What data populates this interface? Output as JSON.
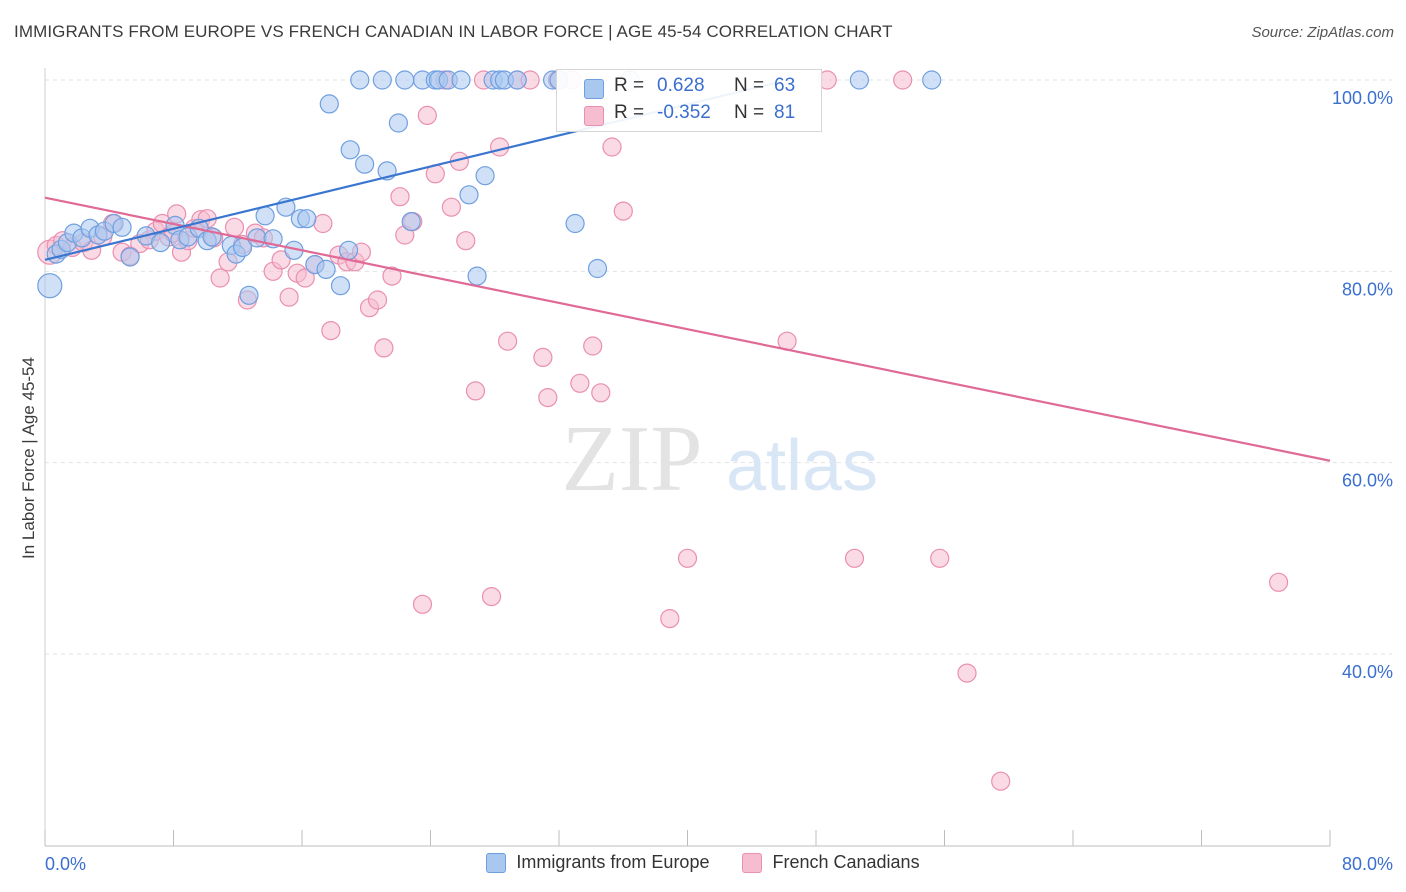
{
  "title": "IMMIGRANTS FROM EUROPE VS FRENCH CANADIAN IN LABOR FORCE | AGE 45-54 CORRELATION CHART",
  "source": "Source: ZipAtlas.com",
  "watermark": {
    "zip": "ZIP",
    "atlas": "atlas"
  },
  "colors": {
    "blue_fill": "#a9c8f0",
    "blue_stroke": "#6f9fe0",
    "blue_line": "#3a76d0",
    "pink_fill": "#f6bcd0",
    "pink_stroke": "#ea8fb0",
    "pink_line": "#e06a96",
    "axis_text": "#3a6fd0",
    "grid": "#e2e2e2"
  },
  "stats": [
    {
      "r_label": "R =",
      "r_value": "0.628",
      "n_label": "N =",
      "n_value": "63"
    },
    {
      "r_label": "R =",
      "r_value": "-0.352",
      "n_label": "N =",
      "n_value": "81"
    }
  ],
  "legend": [
    {
      "label": "Immigrants from Europe",
      "color": "#a9c8f0"
    },
    {
      "label": "French Canadians",
      "color": "#f6bcd0"
    }
  ],
  "chart_data": {
    "type": "scatter",
    "title": "IMMIGRANTS FROM EUROPE VS FRENCH CANADIAN IN LABOR FORCE | AGE 45-54 CORRELATION CHART",
    "xlabel": "",
    "ylabel": "In Labor Force | Age 45-54",
    "xlim": [
      0,
      80
    ],
    "ylim": [
      17,
      104
    ],
    "x_tick_labels": [
      "0.0%",
      "80.0%"
    ],
    "y_tick_labels": [
      "40.0%",
      "60.0%",
      "80.0%",
      "100.0%"
    ],
    "y_ticks": [
      40,
      60,
      80,
      100
    ],
    "grid": true,
    "legend_position": "bottom",
    "series": [
      {
        "name": "Immigrants from Europe",
        "r": 0.628,
        "n": 63,
        "trend": {
          "x": [
            0,
            45.5
          ],
          "y": [
            81.2,
            99.7
          ]
        },
        "points": [
          [
            0.3,
            78.5
          ],
          [
            0.7,
            81.8
          ],
          [
            1.0,
            82.3
          ],
          [
            1.4,
            83.0
          ],
          [
            1.8,
            84.0
          ],
          [
            2.3,
            83.5
          ],
          [
            2.8,
            84.5
          ],
          [
            3.3,
            83.8
          ],
          [
            3.7,
            84.2
          ],
          [
            4.3,
            85.0
          ],
          [
            4.8,
            84.6
          ],
          [
            5.3,
            81.5
          ],
          [
            6.3,
            83.7
          ],
          [
            7.2,
            83.0
          ],
          [
            8.1,
            84.8
          ],
          [
            8.4,
            83.3
          ],
          [
            8.9,
            83.6
          ],
          [
            9.6,
            84.5
          ],
          [
            10.1,
            83.2
          ],
          [
            10.4,
            83.6
          ],
          [
            11.6,
            82.7
          ],
          [
            11.9,
            81.8
          ],
          [
            12.3,
            82.5
          ],
          [
            12.7,
            77.5
          ],
          [
            13.2,
            83.5
          ],
          [
            13.7,
            85.8
          ],
          [
            14.2,
            83.4
          ],
          [
            15.0,
            86.7
          ],
          [
            15.5,
            82.2
          ],
          [
            15.9,
            85.5
          ],
          [
            16.3,
            85.5
          ],
          [
            16.8,
            80.7
          ],
          [
            17.5,
            80.2
          ],
          [
            17.7,
            97.5
          ],
          [
            18.4,
            78.5
          ],
          [
            18.9,
            82.2
          ],
          [
            19.0,
            92.7
          ],
          [
            19.6,
            100.0
          ],
          [
            19.9,
            91.2
          ],
          [
            21.0,
            100.0
          ],
          [
            21.3,
            90.5
          ],
          [
            22.0,
            95.5
          ],
          [
            22.4,
            100.0
          ],
          [
            22.8,
            85.2
          ],
          [
            23.5,
            100.0
          ],
          [
            24.3,
            100.0
          ],
          [
            24.5,
            100.0
          ],
          [
            25.1,
            100.0
          ],
          [
            25.9,
            100.0
          ],
          [
            26.4,
            88.0
          ],
          [
            26.9,
            79.5
          ],
          [
            27.4,
            90.0
          ],
          [
            27.9,
            100.0
          ],
          [
            28.3,
            100.0
          ],
          [
            28.6,
            100.0
          ],
          [
            29.4,
            100.0
          ],
          [
            31.6,
            100.0
          ],
          [
            32.0,
            100.0
          ],
          [
            33.0,
            85.0
          ],
          [
            34.4,
            80.3
          ],
          [
            36.4,
            100.0
          ],
          [
            50.7,
            100.0
          ],
          [
            55.2,
            100.0
          ]
        ]
      },
      {
        "name": "French Canadians",
        "r": -0.352,
        "n": 81,
        "trend": {
          "x": [
            0,
            80
          ],
          "y": [
            87.7,
            60.2
          ]
        },
        "points": [
          [
            0.3,
            82.0
          ],
          [
            0.7,
            82.7
          ],
          [
            1.1,
            83.2
          ],
          [
            1.7,
            82.5
          ],
          [
            2.4,
            83.0
          ],
          [
            2.9,
            82.2
          ],
          [
            3.6,
            83.6
          ],
          [
            4.2,
            85.0
          ],
          [
            4.8,
            82.0
          ],
          [
            5.3,
            81.6
          ],
          [
            5.9,
            82.9
          ],
          [
            6.5,
            83.3
          ],
          [
            6.9,
            84.2
          ],
          [
            7.3,
            85.0
          ],
          [
            7.7,
            83.6
          ],
          [
            8.0,
            84.0
          ],
          [
            8.2,
            86.0
          ],
          [
            8.5,
            82.0
          ],
          [
            8.9,
            83.2
          ],
          [
            9.3,
            84.5
          ],
          [
            9.7,
            85.4
          ],
          [
            10.1,
            85.5
          ],
          [
            10.5,
            83.5
          ],
          [
            10.9,
            79.3
          ],
          [
            11.4,
            81.0
          ],
          [
            11.8,
            84.6
          ],
          [
            12.3,
            82.8
          ],
          [
            12.6,
            77.0
          ],
          [
            13.1,
            84.0
          ],
          [
            13.6,
            83.5
          ],
          [
            14.2,
            80.0
          ],
          [
            14.7,
            81.2
          ],
          [
            15.2,
            77.3
          ],
          [
            15.7,
            79.8
          ],
          [
            16.2,
            79.3
          ],
          [
            16.8,
            80.7
          ],
          [
            17.3,
            85.0
          ],
          [
            17.8,
            73.8
          ],
          [
            18.3,
            81.7
          ],
          [
            18.8,
            81.0
          ],
          [
            19.3,
            81.0
          ],
          [
            19.7,
            82.0
          ],
          [
            20.2,
            76.2
          ],
          [
            20.7,
            77.0
          ],
          [
            21.1,
            72.0
          ],
          [
            21.6,
            79.5
          ],
          [
            22.1,
            87.8
          ],
          [
            22.4,
            83.8
          ],
          [
            22.9,
            85.2
          ],
          [
            23.5,
            45.2
          ],
          [
            23.8,
            96.3
          ],
          [
            24.3,
            90.2
          ],
          [
            24.9,
            100.0
          ],
          [
            25.3,
            86.7
          ],
          [
            25.8,
            91.5
          ],
          [
            26.2,
            83.2
          ],
          [
            26.8,
            67.5
          ],
          [
            27.3,
            100.0
          ],
          [
            27.8,
            46.0
          ],
          [
            28.3,
            93.0
          ],
          [
            28.8,
            72.7
          ],
          [
            29.4,
            100.0
          ],
          [
            30.2,
            100.0
          ],
          [
            31.0,
            71.0
          ],
          [
            31.3,
            66.8
          ],
          [
            31.9,
            100.0
          ],
          [
            32.8,
            100.0
          ],
          [
            33.3,
            68.3
          ],
          [
            34.1,
            72.2
          ],
          [
            34.6,
            67.3
          ],
          [
            35.3,
            93.0
          ],
          [
            36.0,
            86.3
          ],
          [
            38.9,
            43.7
          ],
          [
            40.0,
            50.0
          ],
          [
            46.2,
            72.7
          ],
          [
            48.7,
            100.0
          ],
          [
            50.4,
            50.0
          ],
          [
            53.4,
            100.0
          ],
          [
            55.7,
            50.0
          ],
          [
            57.4,
            38.0
          ],
          [
            59.5,
            26.7
          ],
          [
            76.8,
            47.5
          ]
        ]
      }
    ]
  }
}
